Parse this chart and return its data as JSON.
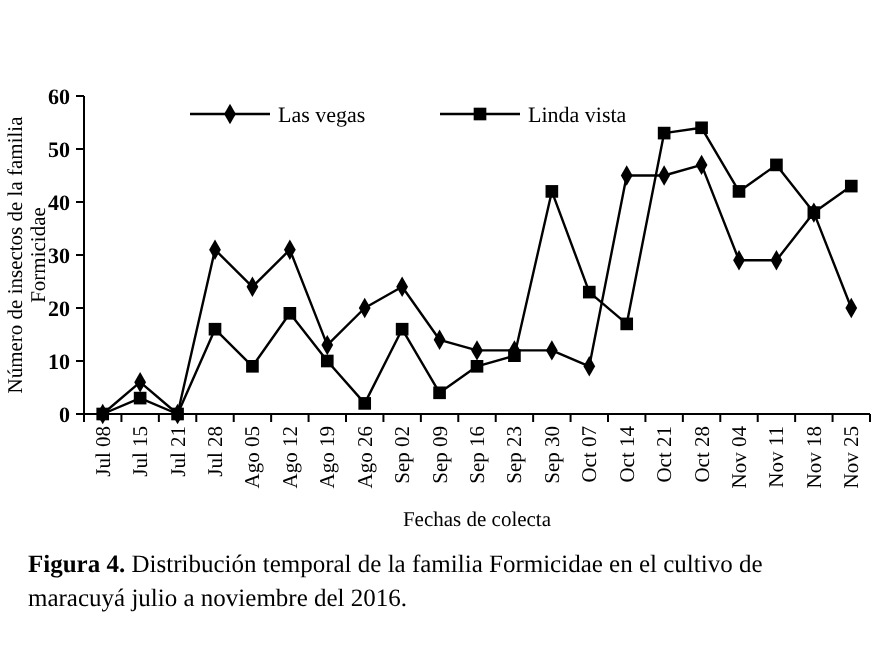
{
  "chart_data": {
    "type": "line",
    "xlabel": "Fechas de colecta",
    "ylabel": "Número de insectos de la familia Formicidae",
    "categories": [
      "Jul 08",
      "Jul 15",
      "Jul 21",
      "Jul 28",
      "Ago 05",
      "Ago 12",
      "Ago 19",
      "Ago 26",
      "Sep 02",
      "Sep 09",
      "Sep 16",
      "Sep 23",
      "Sep 30",
      "Oct 07",
      "Oct 14",
      "Oct 21",
      "Oct 28",
      "Nov 04",
      "Nov 11",
      "Nov 18",
      "Nov 25"
    ],
    "series": [
      {
        "name": "Las vegas",
        "color": "#000000",
        "marker": "diamond",
        "values": [
          0,
          6,
          0,
          31,
          24,
          31,
          13,
          20,
          24,
          14,
          12,
          12,
          12,
          9,
          45,
          45,
          47,
          29,
          29,
          38,
          20
        ]
      },
      {
        "name": "Linda vista",
        "color": "#000000",
        "marker": "square",
        "values": [
          0,
          3,
          0,
          16,
          9,
          19,
          10,
          2,
          16,
          4,
          9,
          11,
          42,
          23,
          17,
          53,
          54,
          42,
          47,
          38,
          43
        ]
      }
    ],
    "ylim": [
      0,
      60
    ],
    "yticks": [
      0,
      10,
      20,
      30,
      40,
      50,
      60
    ],
    "grid": false,
    "legend": "top",
    "line_style": "solid",
    "annotations": [
      "Figura 4. Distribución temporal de la familia Formicidae en el cultivo de maracuyá julio a noviembre del 2016."
    ]
  }
}
